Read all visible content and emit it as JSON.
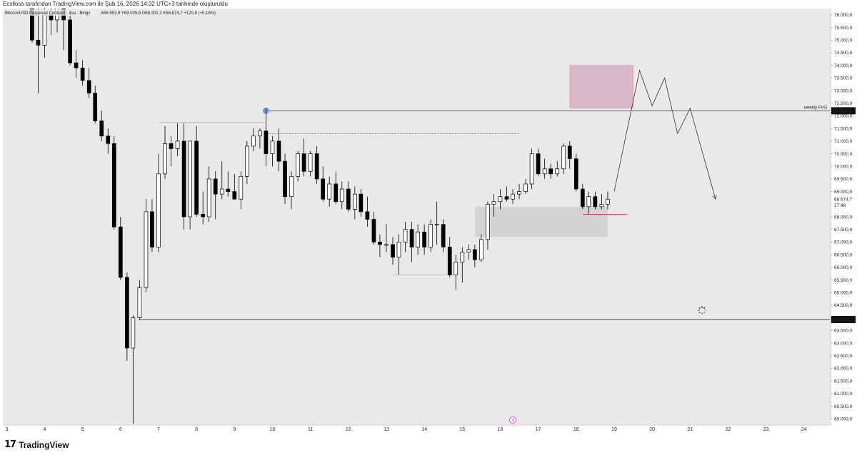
{
  "attribution": "Ecslloss tarafından TradingView.com ile Şub 16, 2026 14:32 UTC+3 tarihinde oluşturuldu",
  "legend": {
    "symbol_part1": "Bitcoin/USD",
    "symbol_part2": "Perpetual Contract · 4sa · Bingx",
    "open_label": "A",
    "open": "68.553,9",
    "high_label": "Y",
    "high": "69.025,6",
    "low_label": "D",
    "low": "68.301,2",
    "close_label": "K",
    "close": "68.674,7",
    "change": "+120,8 (+0,18%)"
  },
  "brand": {
    "logo_mark": "17",
    "name": "TradingView"
  },
  "chart_data": {
    "type": "candlestick",
    "title": "Bitcoin/USD Perpetual Contract · 4sa · Bingx",
    "price_axis": {
      "min": 59750,
      "max": 76250,
      "ticks": [
        "60.000,0",
        "60.500,0",
        "61.000,0",
        "61.500,0",
        "62.000,0",
        "62.500,0",
        "63.000,0",
        "63.500,0",
        "64.000,0",
        "64.500,0",
        "65.000,0",
        "65.500,0",
        "66.000,0",
        "66.500,0",
        "67.000,0",
        "67.500,0",
        "68.000,0",
        "68.500,0",
        "69.000,0",
        "69.500,0",
        "70.000,0",
        "70.500,0",
        "71.000,0",
        "71.500,0",
        "72.000,0",
        "72.500,0",
        "73.000,0",
        "73.500,0",
        "74.000,0",
        "74.500,0",
        "75.000,0",
        "75.500,0",
        "76.000,0"
      ],
      "tick_values": [
        60000,
        60500,
        61000,
        61500,
        62000,
        62500,
        63000,
        63500,
        64000,
        64500,
        65000,
        65500,
        66000,
        66500,
        67000,
        67500,
        68000,
        68500,
        69000,
        69500,
        70000,
        70500,
        71000,
        71500,
        72000,
        72500,
        73000,
        73500,
        74000,
        74500,
        75000,
        75500,
        76000
      ]
    },
    "time_axis": {
      "min": 2.9,
      "max": 24.7,
      "ticks": [
        "3",
        "4",
        "5",
        "6",
        "7",
        "8",
        "9",
        "10",
        "11",
        "12",
        "13",
        "14",
        "15",
        "16",
        "17",
        "18",
        "19",
        "20",
        "21",
        "22",
        "23",
        "24"
      ],
      "tick_values": [
        3,
        4,
        5,
        6,
        7,
        8,
        9,
        10,
        11,
        12,
        13,
        14,
        15,
        16,
        17,
        18,
        19,
        20,
        21,
        22,
        23,
        24
      ]
    },
    "candles": [
      [
        3.67,
        76500,
        77000,
        74900,
        75000
      ],
      [
        3.83,
        75000,
        77000,
        72900,
        74800
      ],
      [
        4.0,
        74800,
        76300,
        74300,
        76000
      ],
      [
        4.17,
        76000,
        76500,
        75200,
        75800
      ],
      [
        4.33,
        75800,
        76600,
        75300,
        76300
      ],
      [
        4.5,
        76300,
        76500,
        74600,
        75800
      ],
      [
        4.67,
        75800,
        76000,
        74000,
        74100
      ],
      [
        4.83,
        74100,
        74600,
        73500,
        73900
      ],
      [
        5.0,
        73900,
        74200,
        73200,
        73400
      ],
      [
        5.17,
        73400,
        73900,
        72700,
        72900
      ],
      [
        5.33,
        72900,
        73200,
        71700,
        71800
      ],
      [
        5.5,
        71800,
        72200,
        71000,
        71200
      ],
      [
        5.67,
        71200,
        71500,
        70500,
        70900
      ],
      [
        5.83,
        70900,
        71200,
        67500,
        67600
      ],
      [
        6.0,
        67600,
        68000,
        65500,
        65600
      ],
      [
        6.17,
        65600,
        65800,
        62300,
        62800
      ],
      [
        6.33,
        62800,
        64100,
        59800,
        64000
      ],
      [
        6.5,
        64000,
        65500,
        63900,
        65200
      ],
      [
        6.67,
        65200,
        68700,
        65000,
        68200
      ],
      [
        6.83,
        68200,
        68700,
        66600,
        66800
      ],
      [
        7.0,
        66800,
        70500,
        66600,
        69700
      ],
      [
        7.17,
        69700,
        71600,
        69500,
        70900
      ],
      [
        7.33,
        70900,
        71200,
        70000,
        70700
      ],
      [
        7.5,
        70700,
        71700,
        70400,
        71000
      ],
      [
        7.67,
        71000,
        71700,
        67500,
        68000
      ],
      [
        7.83,
        68000,
        71000,
        67500,
        71000
      ],
      [
        8.0,
        71000,
        71600,
        68000,
        68100
      ],
      [
        8.17,
        68100,
        69000,
        67700,
        68000
      ],
      [
        8.33,
        68000,
        70000,
        67800,
        69500
      ],
      [
        8.5,
        69500,
        69800,
        67900,
        68900
      ],
      [
        8.67,
        68900,
        70200,
        68700,
        69100
      ],
      [
        8.83,
        69100,
        69800,
        68800,
        69000
      ],
      [
        9.0,
        69000,
        69700,
        68700,
        68700
      ],
      [
        9.17,
        68700,
        69800,
        68300,
        69600
      ],
      [
        9.33,
        69600,
        71000,
        69300,
        70800
      ],
      [
        9.5,
        70800,
        71500,
        70600,
        71200
      ],
      [
        9.67,
        71200,
        71500,
        70700,
        71400
      ],
      [
        9.83,
        71400,
        72300,
        70000,
        70500
      ],
      [
        10.0,
        70500,
        71200,
        70000,
        71000
      ],
      [
        10.17,
        71000,
        71500,
        69800,
        70200
      ],
      [
        10.33,
        70200,
        70500,
        68500,
        68800
      ],
      [
        10.5,
        68800,
        69800,
        68300,
        69600
      ],
      [
        10.67,
        69600,
        70600,
        69400,
        70500
      ],
      [
        10.83,
        70500,
        71100,
        69600,
        69800
      ],
      [
        11.0,
        69800,
        70600,
        69600,
        70500
      ],
      [
        11.17,
        70500,
        70800,
        69300,
        69500
      ],
      [
        11.33,
        69500,
        70000,
        68600,
        68700
      ],
      [
        11.5,
        68700,
        69600,
        68400,
        69300
      ],
      [
        11.67,
        69300,
        69800,
        68500,
        68600
      ],
      [
        11.83,
        68600,
        69400,
        68300,
        69100
      ],
      [
        12.0,
        69100,
        69400,
        68200,
        68300
      ],
      [
        12.17,
        68300,
        69200,
        67900,
        68900
      ],
      [
        12.33,
        68900,
        69100,
        68000,
        68200
      ],
      [
        12.5,
        68200,
        68800,
        67600,
        67900
      ],
      [
        12.67,
        67900,
        68200,
        66900,
        67000
      ],
      [
        12.83,
        67000,
        67300,
        66400,
        66900
      ],
      [
        13.0,
        66900,
        67700,
        66600,
        66900
      ],
      [
        13.17,
        66900,
        67200,
        66100,
        66400
      ],
      [
        13.33,
        66400,
        67300,
        65700,
        67000
      ],
      [
        13.5,
        67000,
        67800,
        66600,
        67500
      ],
      [
        13.67,
        67500,
        67800,
        66200,
        66800
      ],
      [
        13.83,
        66800,
        67700,
        66500,
        67400
      ],
      [
        14.0,
        67400,
        67700,
        66500,
        66800
      ],
      [
        14.17,
        66800,
        67900,
        66600,
        67700
      ],
      [
        14.33,
        67700,
        68600,
        66900,
        67700
      ],
      [
        14.5,
        67700,
        67900,
        66600,
        66800
      ],
      [
        14.67,
        66800,
        67200,
        65600,
        65700
      ],
      [
        14.83,
        65700,
        66500,
        65100,
        66200
      ],
      [
        15.0,
        66200,
        66800,
        65400,
        66600
      ],
      [
        15.17,
        66600,
        66900,
        66300,
        66700
      ],
      [
        15.33,
        66700,
        66900,
        66000,
        66300
      ],
      [
        15.5,
        66300,
        67300,
        66200,
        67100
      ],
      [
        15.67,
        67100,
        68600,
        66700,
        68500
      ],
      [
        15.83,
        68500,
        68900,
        68000,
        68600
      ],
      [
        16.0,
        68600,
        69100,
        68300,
        68800
      ],
      [
        16.17,
        68800,
        69200,
        68600,
        68700
      ],
      [
        16.33,
        68700,
        69100,
        68500,
        68900
      ],
      [
        16.5,
        68900,
        69300,
        68700,
        69000
      ],
      [
        16.67,
        69000,
        69500,
        68900,
        69300
      ],
      [
        16.83,
        69300,
        70700,
        69100,
        70500
      ],
      [
        17.0,
        70500,
        70700,
        69600,
        69700
      ],
      [
        17.17,
        69700,
        70300,
        69500,
        69900
      ],
      [
        17.33,
        69900,
        70100,
        69500,
        69700
      ],
      [
        17.5,
        69700,
        70200,
        69600,
        69900
      ],
      [
        17.67,
        69900,
        70900,
        69700,
        70800
      ],
      [
        17.83,
        70800,
        71000,
        69900,
        70300
      ],
      [
        18.0,
        70300,
        70500,
        69000,
        69100
      ],
      [
        18.17,
        69100,
        69300,
        68300,
        68400
      ],
      [
        18.33,
        68400,
        69000,
        68100,
        68800
      ],
      [
        18.5,
        68800,
        69000,
        68300,
        68400
      ],
      [
        18.67,
        68400,
        68900,
        68300,
        68500
      ],
      [
        18.83,
        68500,
        69000,
        68300,
        68700
      ]
    ],
    "drawings": {
      "weekly_fvg_label": "weekly FVG",
      "weekly_fvg_price": 72200,
      "weekly_fvg_price_label": "72.256,3",
      "support_price": 63930,
      "support_price_label": "63.930,5",
      "current_price_label": "68.674,7",
      "countdown_label": "27:48",
      "dashed_level": 71300,
      "supply_zone": {
        "x1": 17.83,
        "x2": 19.5,
        "y1": 72300,
        "y2": 74000,
        "color": "#d9b6c8"
      },
      "demand_zone": {
        "x1": 15.33,
        "x2": 18.83,
        "y1": 67200,
        "y2": 68400,
        "color": "#d4d4d4"
      },
      "projection_path": [
        [
          19.0,
          69000
        ],
        [
          19.67,
          73800
        ],
        [
          20.0,
          72400
        ],
        [
          20.33,
          73500
        ],
        [
          20.67,
          71300
        ],
        [
          21.0,
          72300
        ],
        [
          21.67,
          68700
        ]
      ]
    }
  }
}
